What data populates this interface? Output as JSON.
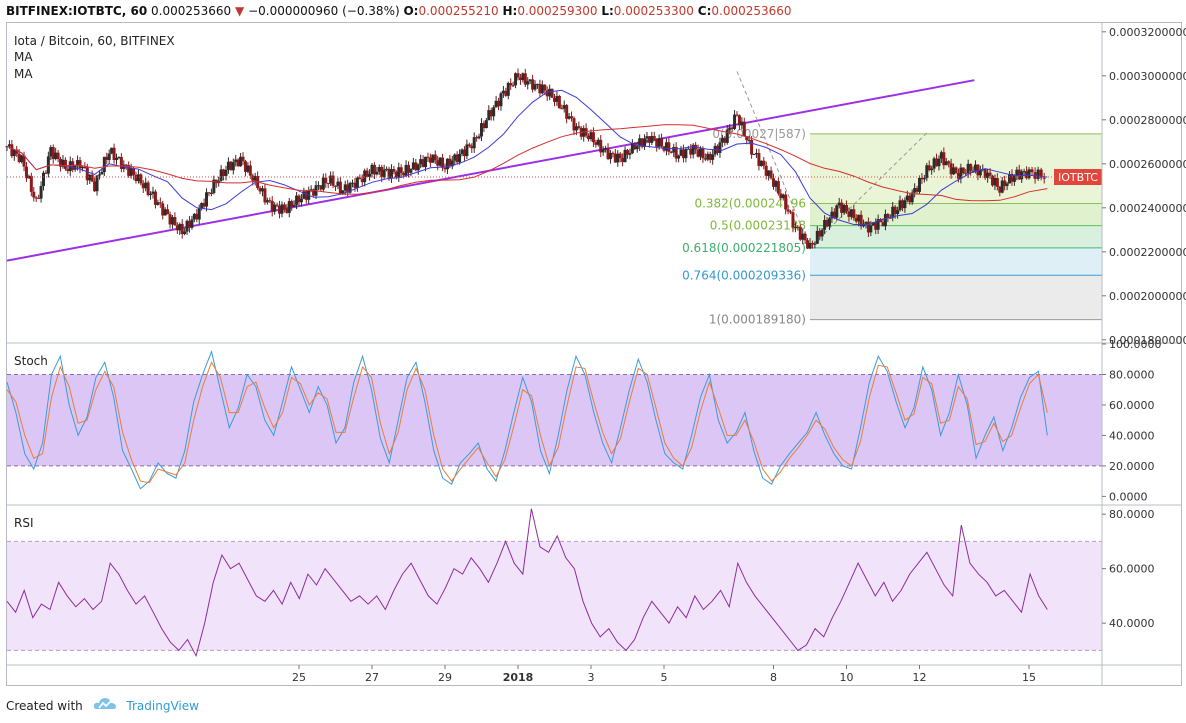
{
  "header": {
    "symbol": "BITFINEX:IOTBTC, 60",
    "last": "0.000253660",
    "change": "−0.000000960 (−0.38%)",
    "open_label": "O:",
    "open": "0.000255210",
    "high_label": "H:",
    "high": "0.000259300",
    "low_label": "L:",
    "low": "0.000253300",
    "close_label": "C:",
    "close": "0.000253660"
  },
  "footer": {
    "created_with": "Created with",
    "brand": "TradingView"
  },
  "colors": {
    "up_candle": "#2c2c2c",
    "down_candle": "#8b1a1a",
    "ma_fast": "#3b3bd6",
    "ma_slow": "#d62e2e",
    "trendline": "#9b30e6",
    "stoch_k": "#3b9bdb",
    "stoch_d": "#e67e3c",
    "rsi_line": "#8e2c9e",
    "osc_band": "#dcc6f5",
    "fib_green": "#e6f2cf",
    "fib_blue": "#d8ecf3",
    "fib_gray": "#e8e8e8",
    "price_tag": "#e2463a"
  },
  "chart_data": [
    {
      "type": "line",
      "title": "Iota / Bitcoin, 60, BITFINEX",
      "legend": [
        "MA",
        "MA"
      ],
      "price_tag": "IOTBTC",
      "x_tick_labels": [
        "25",
        "27",
        "29",
        "2018",
        "3",
        "5",
        "8",
        "10",
        "12",
        "15"
      ],
      "y_tick_labels": [
        "0.0003200000",
        "0.0003000000",
        "0.0002800000",
        "0.0002600000",
        "0.0002400000",
        "0.0002200000",
        "0.0002000000",
        "0.0001800000"
      ],
      "ylim": [
        0.000179,
        0.000324
      ],
      "x_days": [
        -7,
        23
      ],
      "x_tick_days": [
        1,
        3,
        5,
        7,
        9,
        11,
        14,
        16,
        18,
        21
      ],
      "price_series": [
        [
          -7.0,
          0.000268
        ],
        [
          -6.6,
          0.000262
        ],
        [
          -6.2,
          0.000242
        ],
        [
          -5.8,
          0.000266
        ],
        [
          -5.4,
          0.000258
        ],
        [
          -5.0,
          0.00026
        ],
        [
          -4.6,
          0.00025
        ],
        [
          -4.2,
          0.000266
        ],
        [
          -3.8,
          0.000259
        ],
        [
          -3.4,
          0.000253
        ],
        [
          -3.0,
          0.000245
        ],
        [
          -2.6,
          0.000236
        ],
        [
          -2.2,
          0.000229
        ],
        [
          -1.8,
          0.000237
        ],
        [
          -1.4,
          0.000249
        ],
        [
          -1.0,
          0.000258
        ],
        [
          -0.6,
          0.000262
        ],
        [
          -0.2,
          0.000252
        ],
        [
          0.2,
          0.000241
        ],
        [
          0.6,
          0.000239
        ],
        [
          1.0,
          0.000244
        ],
        [
          1.4,
          0.000248
        ],
        [
          1.8,
          0.000253
        ],
        [
          2.2,
          0.000248
        ],
        [
          2.6,
          0.000252
        ],
        [
          3.0,
          0.000257
        ],
        [
          3.4,
          0.000256
        ],
        [
          3.8,
          0.000256
        ],
        [
          4.2,
          0.000259
        ],
        [
          4.6,
          0.000263
        ],
        [
          5.0,
          0.000259
        ],
        [
          5.4,
          0.000264
        ],
        [
          5.8,
          0.00027
        ],
        [
          6.2,
          0.000282
        ],
        [
          6.6,
          0.000292
        ],
        [
          7.0,
          0.0003
        ],
        [
          7.4,
          0.000296
        ],
        [
          7.8,
          0.000293
        ],
        [
          8.2,
          0.000286
        ],
        [
          8.6,
          0.000276
        ],
        [
          9.0,
          0.000272
        ],
        [
          9.4,
          0.000265
        ],
        [
          9.8,
          0.000262
        ],
        [
          10.2,
          0.000268
        ],
        [
          10.6,
          0.000272
        ],
        [
          11.0,
          0.000268
        ],
        [
          11.4,
          0.000264
        ],
        [
          11.8,
          0.000267
        ],
        [
          12.2,
          0.000262
        ],
        [
          12.6,
          0.00027
        ],
        [
          13.0,
          0.000282
        ],
        [
          13.4,
          0.000266
        ],
        [
          13.8,
          0.000257
        ],
        [
          14.2,
          0.000246
        ],
        [
          14.6,
          0.000231
        ],
        [
          15.0,
          0.000222
        ],
        [
          15.4,
          0.000232
        ],
        [
          15.8,
          0.000241
        ],
        [
          16.2,
          0.000236
        ],
        [
          16.6,
          0.000231
        ],
        [
          17.0,
          0.000234
        ],
        [
          17.4,
          0.00024
        ],
        [
          17.8,
          0.000246
        ],
        [
          18.2,
          0.000257
        ],
        [
          18.6,
          0.000263
        ],
        [
          19.0,
          0.000255
        ],
        [
          19.4,
          0.000258
        ],
        [
          19.8,
          0.000256
        ],
        [
          20.2,
          0.000249
        ],
        [
          20.6,
          0.000255
        ],
        [
          21.0,
          0.000256
        ],
        [
          21.5,
          0.000254
        ]
      ],
      "fibonacci": [
        {
          "label": "0(0.000273587)",
          "value": 0.000273587,
          "label_shown": "0(0.00027|587)"
        },
        {
          "label": "0.382(0.000241965)",
          "value": 0.000241965,
          "label_shown": "0.382(0.00024196"
        },
        {
          "label": "0.5(0.000231883)",
          "value": 0.000231883,
          "label_shown": "0.5(0.00023188"
        },
        {
          "label": "0.618(0.000221805)",
          "value": 0.000221805,
          "label_shown": "0.618(0.000221805)"
        },
        {
          "label": "0.764(0.000209336)",
          "value": 0.000209336,
          "label_shown": "0.764(0.000209336)"
        },
        {
          "label": "1(0.000189180)",
          "value": 0.00018918,
          "label_shown": "1(0.000189180)"
        }
      ],
      "trendline": {
        "from": [
          -7.0,
          0.000216
        ],
        "to": [
          19.5,
          0.000298
        ]
      }
    },
    {
      "type": "line",
      "title": "Stoch",
      "y_tick_labels": [
        "100.0000",
        "80.0000",
        "60.0000",
        "40.0000",
        "20.0000",
        "0.0000"
      ],
      "ylim": [
        -5,
        100
      ],
      "band": [
        20,
        80
      ],
      "k_values": [
        75,
        55,
        28,
        18,
        35,
        80,
        92,
        60,
        40,
        52,
        78,
        88,
        65,
        30,
        18,
        5,
        10,
        22,
        15,
        12,
        30,
        62,
        80,
        95,
        70,
        45,
        58,
        80,
        72,
        50,
        40,
        62,
        85,
        70,
        55,
        72,
        60,
        35,
        45,
        75,
        92,
        70,
        38,
        22,
        50,
        78,
        88,
        62,
        30,
        12,
        8,
        22,
        28,
        35,
        18,
        10,
        30,
        55,
        78,
        62,
        30,
        15,
        40,
        70,
        92,
        80,
        55,
        35,
        22,
        45,
        70,
        90,
        75,
        50,
        28,
        22,
        18,
        40,
        65,
        80,
        50,
        35,
        42,
        55,
        30,
        12,
        8,
        20,
        28,
        35,
        42,
        55,
        40,
        28,
        20,
        18,
        45,
        75,
        92,
        82,
        62,
        45,
        58,
        85,
        70,
        40,
        55,
        80,
        60,
        25,
        40,
        52,
        30,
        45,
        65,
        78,
        82,
        40
      ],
      "d_values": [
        70,
        62,
        40,
        25,
        28,
        65,
        85,
        72,
        48,
        50,
        70,
        82,
        72,
        42,
        24,
        10,
        9,
        18,
        16,
        14,
        22,
        50,
        72,
        88,
        78,
        55,
        55,
        72,
        75,
        58,
        45,
        55,
        78,
        74,
        60,
        68,
        64,
        42,
        42,
        65,
        85,
        78,
        48,
        28,
        42,
        70,
        84,
        70,
        40,
        18,
        10,
        18,
        25,
        32,
        22,
        13,
        24,
        46,
        70,
        66,
        40,
        20,
        32,
        60,
        85,
        84,
        62,
        42,
        28,
        38,
        62,
        84,
        80,
        58,
        35,
        25,
        20,
        32,
        56,
        75,
        58,
        40,
        40,
        50,
        36,
        18,
        10,
        16,
        25,
        32,
        40,
        50,
        44,
        32,
        24,
        20,
        36,
        65,
        86,
        85,
        68,
        50,
        54,
        78,
        74,
        48,
        50,
        72,
        64,
        34,
        36,
        48,
        36,
        40,
        58,
        74,
        80,
        55
      ]
    },
    {
      "type": "line",
      "title": "RSI",
      "y_tick_labels": [
        "80.0000",
        "60.0000",
        "40.0000"
      ],
      "ylim": [
        25,
        83
      ],
      "band": [
        30,
        70
      ],
      "values": [
        48,
        44,
        52,
        42,
        47,
        45,
        55,
        50,
        46,
        49,
        45,
        48,
        62,
        58,
        52,
        47,
        50,
        44,
        38,
        33,
        30,
        34,
        28,
        40,
        55,
        65,
        60,
        62,
        56,
        50,
        48,
        52,
        47,
        55,
        49,
        58,
        54,
        60,
        56,
        52,
        48,
        50,
        47,
        50,
        45,
        52,
        58,
        62,
        56,
        50,
        47,
        53,
        60,
        58,
        64,
        60,
        55,
        62,
        70,
        62,
        58,
        82,
        68,
        66,
        72,
        64,
        60,
        48,
        40,
        35,
        38,
        33,
        30,
        34,
        42,
        48,
        44,
        40,
        46,
        42,
        50,
        45,
        48,
        52,
        46,
        62,
        55,
        50,
        46,
        42,
        38,
        34,
        30,
        32,
        38,
        35,
        42,
        48,
        55,
        62,
        56,
        50,
        55,
        48,
        52,
        58,
        62,
        66,
        60,
        54,
        50,
        76,
        62,
        58,
        55,
        50,
        52,
        48,
        44,
        58,
        50,
        45
      ]
    }
  ]
}
